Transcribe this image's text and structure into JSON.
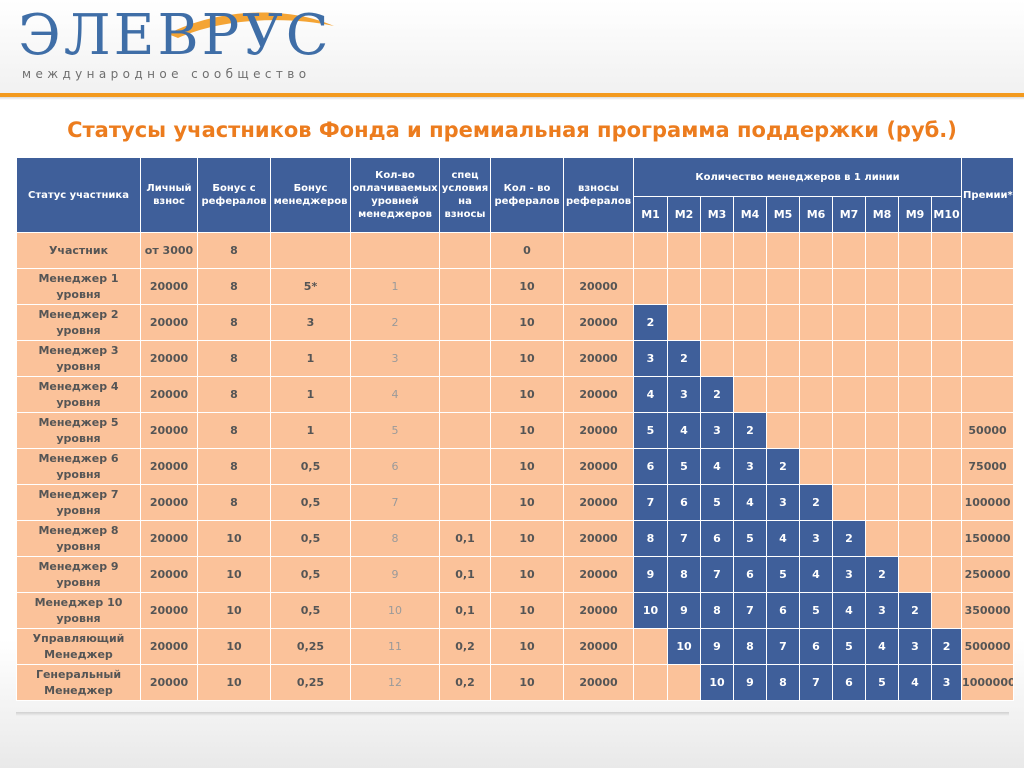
{
  "logo": {
    "name": "ЭЛЕВРУС",
    "subtitle": "международное сообщество"
  },
  "title": "Статусы участников Фонда и премиальная программа поддержки (руб.)",
  "colors": {
    "accent": "#f39a1e",
    "title": "#ec7c1e",
    "header_blue": "#3f5f9a",
    "cell_peach": "#fbc29a",
    "logo_blue": "#3f6ea7"
  },
  "table": {
    "headers": {
      "status": "Статус участника",
      "personal_fee": "Личный взнос",
      "referral_bonus": "Бонус с рефералов",
      "manager_bonus": "Бонус менеджеров",
      "paid_levels": "Кол-во оплачиваемых уровней менеджеров",
      "special_conditions": "спец условия на взносы",
      "referral_count": "Кол - во рефералов",
      "referral_fees": "взносы рефералов",
      "managers_group": "Количество менеджеров в 1 линии",
      "premiums": "Премии*"
    },
    "m_headers": [
      "M1",
      "M2",
      "M3",
      "M4",
      "M5",
      "M6",
      "M7",
      "M8",
      "M9",
      "M10"
    ],
    "rows": [
      {
        "status": "Участник",
        "fee": "от 3000",
        "ref_bonus": "8",
        "mgr_bonus": "",
        "levels": "",
        "spec": "",
        "ref_count": "0",
        "ref_fees": "",
        "m": [
          "",
          "",
          "",
          "",
          "",
          "",
          "",
          "",
          "",
          ""
        ],
        "premium": ""
      },
      {
        "status": "Менеджер 1 уровня",
        "fee": "20000",
        "ref_bonus": "8",
        "mgr_bonus": "5*",
        "levels": "1",
        "spec": "",
        "ref_count": "10",
        "ref_fees": "20000",
        "m": [
          "",
          "",
          "",
          "",
          "",
          "",
          "",
          "",
          "",
          ""
        ],
        "premium": ""
      },
      {
        "status": "Менеджер 2 уровня",
        "fee": "20000",
        "ref_bonus": "8",
        "mgr_bonus": "3",
        "levels": "2",
        "spec": "",
        "ref_count": "10",
        "ref_fees": "20000",
        "m": [
          "2",
          "",
          "",
          "",
          "",
          "",
          "",
          "",
          "",
          ""
        ],
        "premium": ""
      },
      {
        "status": "Менеджер 3 уровня",
        "fee": "20000",
        "ref_bonus": "8",
        "mgr_bonus": "1",
        "levels": "3",
        "spec": "",
        "ref_count": "10",
        "ref_fees": "20000",
        "m": [
          "3",
          "2",
          "",
          "",
          "",
          "",
          "",
          "",
          "",
          ""
        ],
        "premium": ""
      },
      {
        "status": "Менеджер 4 уровня",
        "fee": "20000",
        "ref_bonus": "8",
        "mgr_bonus": "1",
        "levels": "4",
        "spec": "",
        "ref_count": "10",
        "ref_fees": "20000",
        "m": [
          "4",
          "3",
          "2",
          "",
          "",
          "",
          "",
          "",
          "",
          ""
        ],
        "premium": ""
      },
      {
        "status": "Менеджер 5 уровня",
        "fee": "20000",
        "ref_bonus": "8",
        "mgr_bonus": "1",
        "levels": "5",
        "spec": "",
        "ref_count": "10",
        "ref_fees": "20000",
        "m": [
          "5",
          "4",
          "3",
          "2",
          "",
          "",
          "",
          "",
          "",
          ""
        ],
        "premium": "50000"
      },
      {
        "status": "Менеджер 6 уровня",
        "fee": "20000",
        "ref_bonus": "8",
        "mgr_bonus": "0,5",
        "levels": "6",
        "spec": "",
        "ref_count": "10",
        "ref_fees": "20000",
        "m": [
          "6",
          "5",
          "4",
          "3",
          "2",
          "",
          "",
          "",
          "",
          ""
        ],
        "premium": "75000"
      },
      {
        "status": "Менеджер 7 уровня",
        "fee": "20000",
        "ref_bonus": "8",
        "mgr_bonus": "0,5",
        "levels": "7",
        "spec": "",
        "ref_count": "10",
        "ref_fees": "20000",
        "m": [
          "7",
          "6",
          "5",
          "4",
          "3",
          "2",
          "",
          "",
          "",
          ""
        ],
        "premium": "100000"
      },
      {
        "status": "Менеджер 8 уровня",
        "fee": "20000",
        "ref_bonus": "10",
        "mgr_bonus": "0,5",
        "levels": "8",
        "spec": "0,1",
        "ref_count": "10",
        "ref_fees": "20000",
        "m": [
          "8",
          "7",
          "6",
          "5",
          "4",
          "3",
          "2",
          "",
          "",
          ""
        ],
        "premium": "150000"
      },
      {
        "status": "Менеджер 9 уровня",
        "fee": "20000",
        "ref_bonus": "10",
        "mgr_bonus": "0,5",
        "levels": "9",
        "spec": "0,1",
        "ref_count": "10",
        "ref_fees": "20000",
        "m": [
          "9",
          "8",
          "7",
          "6",
          "5",
          "4",
          "3",
          "2",
          "",
          ""
        ],
        "premium": "250000"
      },
      {
        "status": "Менеджер 10 уровня",
        "fee": "20000",
        "ref_bonus": "10",
        "mgr_bonus": "0,5",
        "levels": "10",
        "spec": "0,1",
        "ref_count": "10",
        "ref_fees": "20000",
        "m": [
          "10",
          "9",
          "8",
          "7",
          "6",
          "5",
          "4",
          "3",
          "2",
          ""
        ],
        "premium": "350000"
      },
      {
        "status": "Управляющий Менеджер",
        "fee": "20000",
        "ref_bonus": "10",
        "mgr_bonus": "0,25",
        "levels": "11",
        "spec": "0,2",
        "ref_count": "10",
        "ref_fees": "20000",
        "m": [
          "",
          "10",
          "9",
          "8",
          "7",
          "6",
          "5",
          "4",
          "3",
          "2"
        ],
        "premium": "500000"
      },
      {
        "status": "Генеральный Менеджер",
        "fee": "20000",
        "ref_bonus": "10",
        "mgr_bonus": "0,25",
        "levels": "12",
        "spec": "0,2",
        "ref_count": "10",
        "ref_fees": "20000",
        "m": [
          "",
          "",
          "10",
          "9",
          "8",
          "7",
          "6",
          "5",
          "4",
          "3"
        ],
        "premium": "1000000"
      }
    ]
  }
}
